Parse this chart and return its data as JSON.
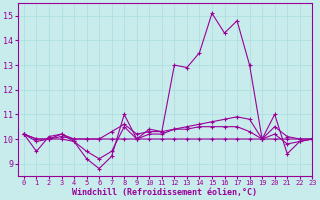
{
  "xlabel": "Windchill (Refroidissement éolien,°C)",
  "background_color": "#c8ecec",
  "line_color": "#990099",
  "grid_color": "#aadddd",
  "xlim": [
    -0.5,
    23
  ],
  "ylim": [
    8.5,
    15.5
  ],
  "yticks": [
    9,
    10,
    11,
    12,
    13,
    14,
    15
  ],
  "xticks": [
    0,
    1,
    2,
    3,
    4,
    5,
    6,
    7,
    8,
    9,
    10,
    11,
    12,
    13,
    14,
    15,
    16,
    17,
    18,
    19,
    20,
    21,
    22,
    23
  ],
  "series": [
    [
      10.2,
      9.5,
      10.1,
      10.2,
      9.9,
      9.2,
      8.8,
      9.3,
      11.0,
      10.0,
      10.4,
      10.3,
      13.0,
      12.9,
      13.5,
      15.1,
      14.3,
      14.8,
      13.0,
      10.0,
      11.0,
      9.4,
      9.9,
      10.0
    ],
    [
      10.2,
      10.0,
      10.0,
      10.1,
      10.0,
      10.0,
      10.0,
      10.0,
      10.0,
      10.0,
      10.0,
      10.0,
      10.0,
      10.0,
      10.0,
      10.0,
      10.0,
      10.0,
      10.0,
      10.0,
      10.0,
      10.0,
      10.0,
      10.0
    ],
    [
      10.2,
      10.0,
      10.0,
      10.2,
      10.0,
      10.0,
      10.0,
      10.3,
      10.6,
      10.2,
      10.3,
      10.3,
      10.4,
      10.5,
      10.6,
      10.7,
      10.8,
      10.9,
      10.8,
      10.0,
      10.5,
      10.1,
      10.0,
      10.0
    ],
    [
      10.2,
      9.9,
      10.0,
      10.0,
      9.9,
      9.5,
      9.2,
      9.5,
      10.5,
      10.0,
      10.2,
      10.2,
      10.4,
      10.4,
      10.5,
      10.5,
      10.5,
      10.5,
      10.3,
      10.0,
      10.2,
      9.8,
      9.9,
      10.0
    ]
  ]
}
